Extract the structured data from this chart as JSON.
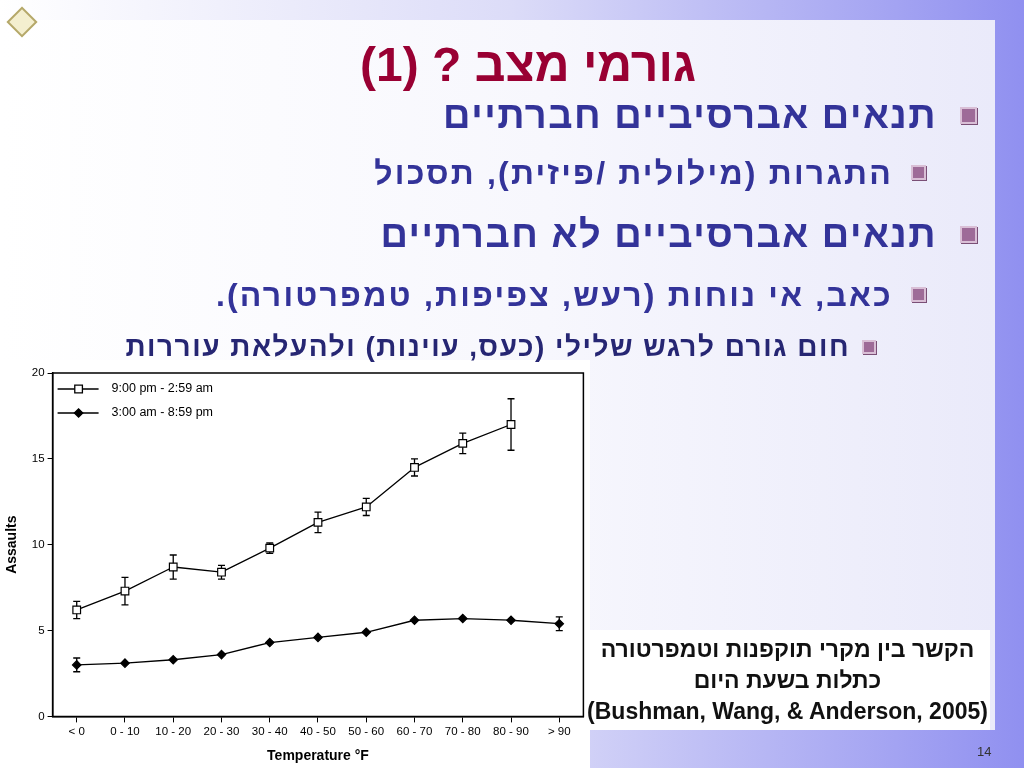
{
  "chart_data": {
    "type": "line",
    "title": "גורמי מצב ? (1)",
    "xlabel": "Temperature °F",
    "ylabel": "Assaults",
    "categories": [
      "< 0",
      "0 - 10",
      "10 - 20",
      "20 - 30",
      "30 - 40",
      "40 - 50",
      "50 - 60",
      "60 - 70",
      "70 - 80",
      "80 - 90",
      "> 90"
    ],
    "series": [
      {
        "name": "9:00 pm - 2:59 am",
        "color": "#000000",
        "marker": "square",
        "values": [
          6.2,
          7.3,
          8.7,
          8.4,
          9.8,
          11.3,
          12.2,
          14.5,
          15.9,
          17.0,
          null
        ],
        "errors": [
          0.5,
          0.8,
          0.7,
          0.4,
          0.3,
          0.6,
          0.5,
          0.5,
          0.6,
          1.5,
          null
        ]
      },
      {
        "name": "3:00 am - 8:59 pm",
        "color": "#000000",
        "marker": "diamond",
        "values": [
          3.0,
          3.1,
          3.3,
          3.6,
          4.3,
          4.6,
          4.9,
          5.6,
          5.7,
          5.6,
          5.4
        ],
        "errors": [
          0.4,
          null,
          null,
          null,
          null,
          null,
          null,
          null,
          null,
          null,
          0.4
        ]
      }
    ],
    "ylim": [
      0,
      20
    ],
    "yticks": [
      0,
      5,
      10,
      15,
      20
    ],
    "grid": false,
    "legend": "top left",
    "line_style": "solid",
    "annotations": [
      "תנאים אברסיביים חברתיים",
      "התגרות (מילולית /פיזית), תסכול",
      "תנאים אברסיביים לא חברתיים",
      "כאב, אי נוחות (רעש, צפיפות, טמפרטורה).",
      "חום גורם לרגש שלילי (כעס, עוינות) ולהעלאת עוררות",
      "הקשר בין מקרי תוקפנות וטמפרטורה כתלות בשעת היום",
      "(Bushman, Wang, & Anderson, 2005)",
      "14"
    ]
  }
}
